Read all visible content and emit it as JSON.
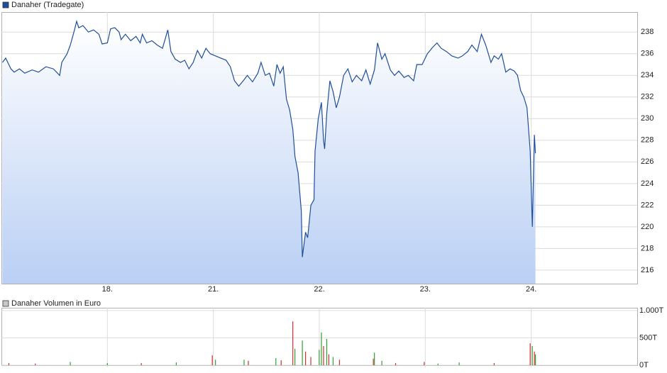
{
  "chart_data": [
    {
      "type": "line",
      "series": [
        {
          "name": "Danaher (Tradegate)",
          "color": "#1f4e9c",
          "values": [
            235.2,
            235.6,
            234.6,
            234.3,
            234.6,
            234.2,
            234.5,
            234.3,
            234.8,
            234.6,
            234.0,
            235.2,
            236.0,
            236.8,
            238.2,
            239.0,
            238.4,
            238.6,
            238.0,
            238.2,
            237.8,
            236.9,
            237.0,
            238.3,
            238.4,
            238.0,
            237.3,
            237.8,
            237.2,
            237.6,
            237.0,
            237.8,
            237.0,
            237.2,
            236.8,
            236.5,
            238.2,
            236.2,
            235.5,
            235.2,
            235.4,
            234.6,
            235.2,
            236.3,
            235.6,
            236.5,
            236.0,
            235.8,
            235.6,
            235.4,
            234.8,
            233.5,
            233.0,
            233.6,
            234.0,
            233.4,
            234.2,
            235.2,
            234.0,
            234.2,
            233.0,
            235.0,
            234.2,
            234.8,
            231.8,
            230.8,
            229.0,
            226.5,
            225.0,
            221.5,
            217.2,
            219.5,
            219.0,
            222.0,
            222.5,
            227.0,
            230.0,
            231.5,
            228.0,
            227.2,
            230.5,
            233.5,
            232.5,
            231.0,
            232.0,
            234.0,
            234.6,
            233.4,
            234.0,
            233.5,
            234.5,
            233.2,
            234.5,
            237.0,
            235.5,
            236.0,
            234.5,
            234.0,
            234.4,
            233.8,
            234.0,
            233.5,
            235.0,
            235.0,
            236.0,
            236.6,
            237.0,
            236.5,
            236.2,
            235.8,
            235.6,
            235.8,
            236.2,
            236.8,
            236.2,
            237.8,
            236.8,
            235.2,
            235.8,
            235.5,
            236.0,
            234.3,
            234.6,
            234.4,
            234.0,
            232.6,
            232.0,
            231.0,
            227.0,
            220.0,
            228.5,
            226.8
          ]
        }
      ],
      "x": [
        0.01,
        0.04,
        0.09,
        0.12,
        0.17,
        0.22,
        0.29,
        0.35,
        0.42,
        0.49,
        0.55,
        0.57,
        0.62,
        0.65,
        0.69,
        0.71,
        0.73,
        0.77,
        0.82,
        0.87,
        0.92,
        0.95,
        1.0,
        1.03,
        1.07,
        1.11,
        1.13,
        1.17,
        1.22,
        1.27,
        1.31,
        1.33,
        1.37,
        1.42,
        1.47,
        1.52,
        1.57,
        1.6,
        1.64,
        1.69,
        1.73,
        1.77,
        1.81,
        1.85,
        1.89,
        1.93,
        1.97,
        2.02,
        2.07,
        2.12,
        2.16,
        2.2,
        2.24,
        2.29,
        2.32,
        2.37,
        2.42,
        2.45,
        2.49,
        2.53,
        2.57,
        2.6,
        2.63,
        2.66,
        2.69,
        2.72,
        2.75,
        2.77,
        2.8,
        2.83,
        2.84,
        2.87,
        2.89,
        2.92,
        2.95,
        2.96,
        2.99,
        3.02,
        3.04,
        3.05,
        3.07,
        3.1,
        3.13,
        3.16,
        3.19,
        3.23,
        3.27,
        3.31,
        3.35,
        3.4,
        3.44,
        3.48,
        3.52,
        3.55,
        3.59,
        3.62,
        3.67,
        3.71,
        3.75,
        3.8,
        3.84,
        3.89,
        3.92,
        3.97,
        4.02,
        4.07,
        4.11,
        4.15,
        4.2,
        4.25,
        4.31,
        4.35,
        4.4,
        4.44,
        4.49,
        4.53,
        4.57,
        4.62,
        4.65,
        4.69,
        4.72,
        4.76,
        4.8,
        4.84,
        4.87,
        4.9,
        4.93,
        4.96,
        4.99,
        5.01,
        5.03,
        5.04
      ],
      "xlim": [
        0,
        6
      ],
      "xticks": [
        {
          "value": 1,
          "label": "18."
        },
        {
          "value": 2,
          "label": "21."
        },
        {
          "value": 3,
          "label": "22."
        },
        {
          "value": 4,
          "label": "23."
        },
        {
          "value": 5,
          "label": "24."
        }
      ],
      "ylim": [
        214.75,
        239.85
      ],
      "yticks": [
        216,
        218,
        220,
        222,
        224,
        226,
        228,
        230,
        232,
        234,
        236,
        238
      ],
      "grid": true
    },
    {
      "type": "bar",
      "series": [
        {
          "name": "Danaher Volumen in Euro",
          "color": "#c8c8c8",
          "values": [
            40,
            30,
            60,
            40,
            40,
            50,
            180,
            100,
            100,
            80,
            130,
            90,
            800,
            300,
            450,
            250,
            150,
            280,
            600,
            350,
            480,
            200,
            150,
            100,
            120,
            230,
            80,
            40,
            60,
            30,
            50,
            40,
            400,
            350,
            250,
            200
          ]
        }
      ],
      "x": [
        0.07,
        0.32,
        0.65,
        1.0,
        1.32,
        1.65,
        1.99,
        2.02,
        2.29,
        2.33,
        2.59,
        2.64,
        2.75,
        2.77,
        2.84,
        2.87,
        2.92,
        2.999,
        3.02,
        3.04,
        3.07,
        3.09,
        3.13,
        3.19,
        3.51,
        3.52,
        3.59,
        3.72,
        3.99,
        4.12,
        4.32,
        4.65,
        4.99,
        5.01,
        5.03,
        5.04
      ],
      "colors": [
        "#d03030",
        "#d03030",
        "#30a030",
        "#30a030",
        "#d03030",
        "#30a030",
        "#d03030",
        "#30a030",
        "#30a030",
        "#d03030",
        "#30a030",
        "#d03030",
        "#d03030",
        "#30a030",
        "#30a030",
        "#d03030",
        "#d03030",
        "#30a030",
        "#30a030",
        "#d03030",
        "#30a030",
        "#d03030",
        "#30a030",
        "#d03030",
        "#d03030",
        "#30a030",
        "#30a030",
        "#d03030",
        "#d03030",
        "#30a030",
        "#30a030",
        "#d03030",
        "#d03030",
        "#30a030",
        "#d03030",
        "#30a030"
      ],
      "xlim": [
        0,
        6
      ],
      "ylim": [
        0,
        1050
      ],
      "yticks": [
        {
          "value": 0,
          "label": "0T"
        },
        {
          "value": 500,
          "label": "500T"
        },
        {
          "value": 1000,
          "label": "1.000T"
        }
      ],
      "grid": true
    }
  ]
}
